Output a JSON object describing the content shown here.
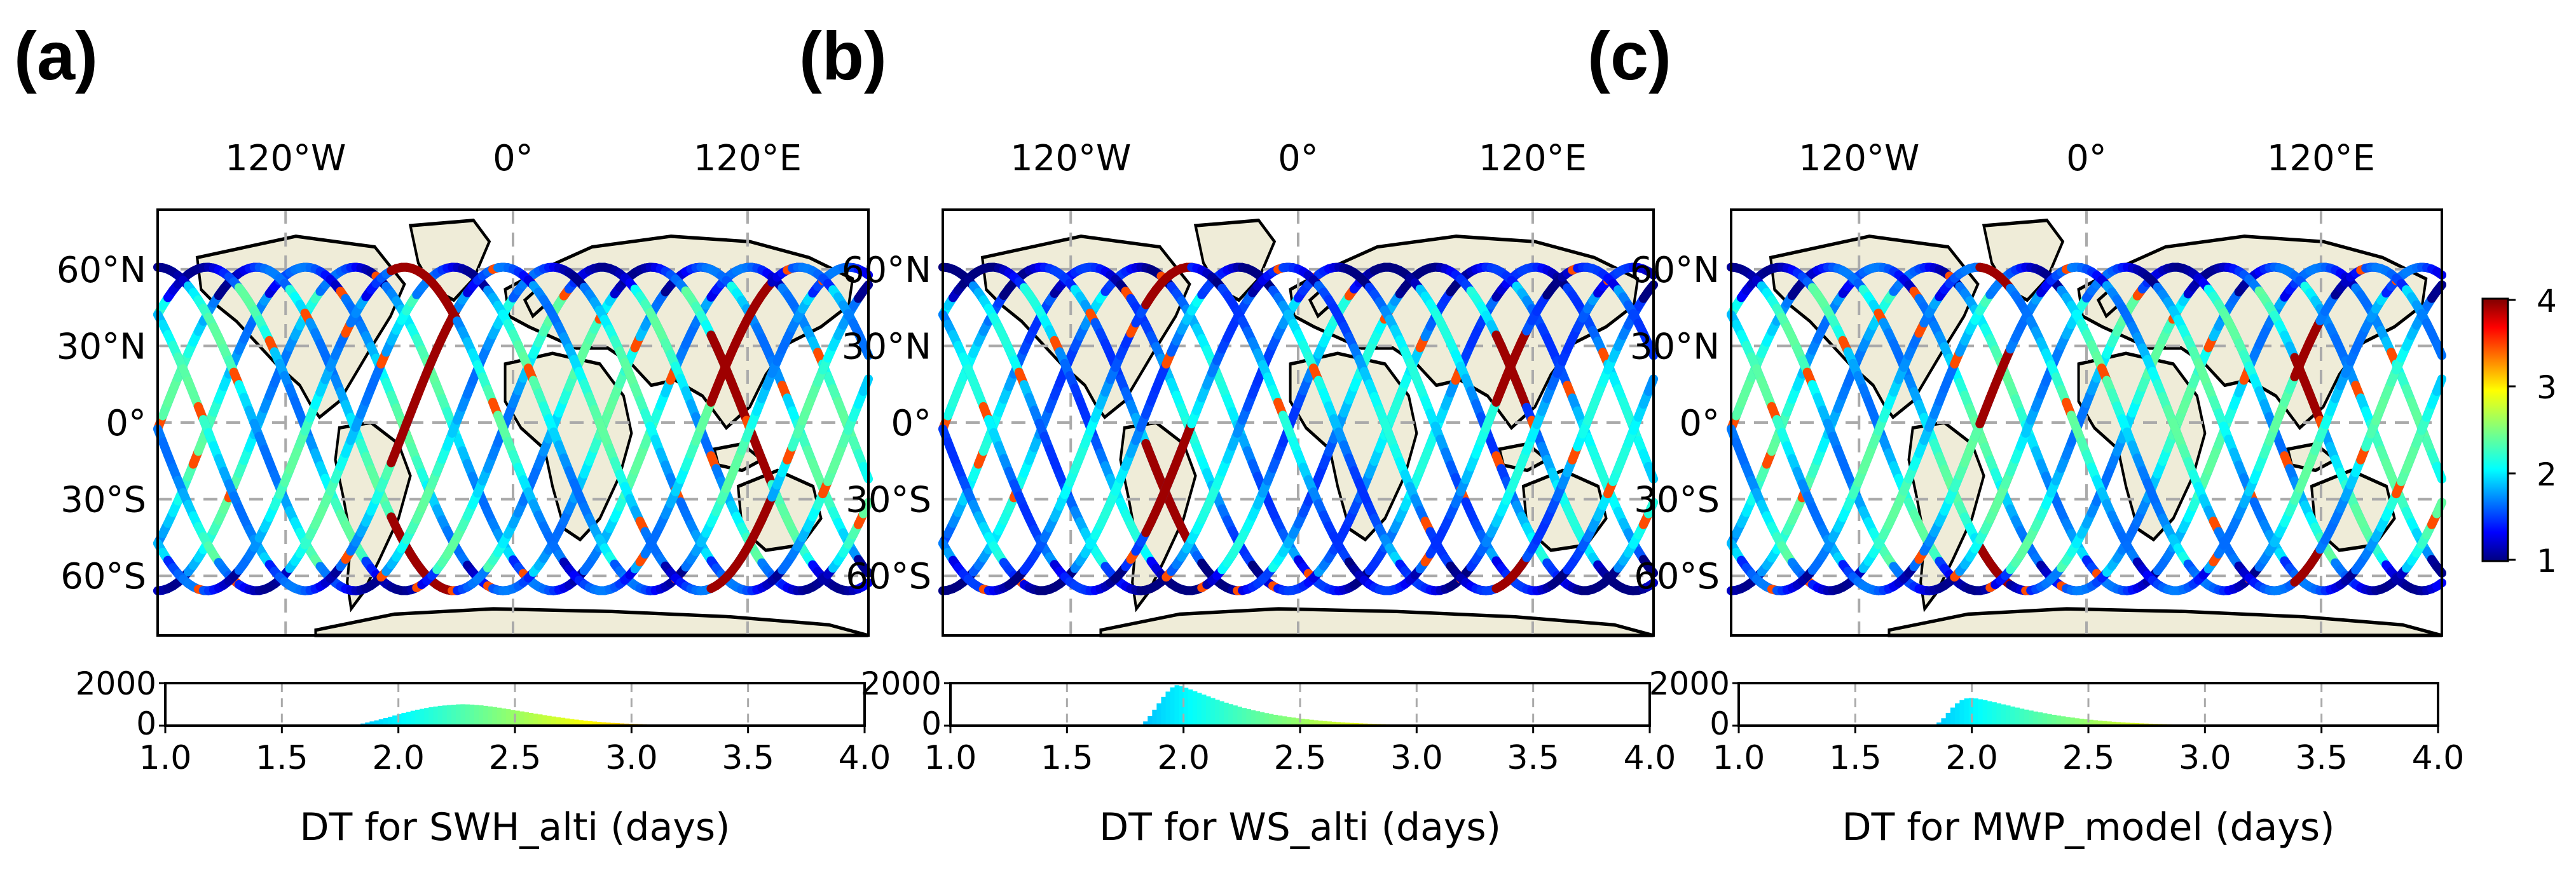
{
  "panels": [
    {
      "label": "(a)",
      "xlabel": "DT for SWH_alti (days)",
      "hist": {
        "values": [
          0,
          0,
          0,
          0,
          0,
          0,
          0,
          0,
          0,
          0,
          0,
          0,
          0,
          0,
          0,
          0,
          0,
          0,
          0,
          0,
          0,
          0,
          0,
          0,
          0,
          0,
          0,
          0,
          0,
          0,
          0,
          0,
          0,
          0,
          0,
          0,
          0,
          0,
          0,
          0,
          10,
          30,
          60,
          100,
          150,
          200,
          250,
          300,
          360,
          420,
          480,
          540,
          600,
          650,
          700,
          750,
          790,
          830,
          870,
          900,
          930,
          950,
          970,
          985,
          1000,
          1005,
          1000,
          990,
          975,
          955,
          930,
          905,
          875,
          845,
          810,
          775,
          740,
          705,
          670,
          635,
          600,
          565,
          530,
          495,
          460,
          430,
          400,
          370,
          340,
          310,
          285,
          260,
          235,
          215,
          195,
          175,
          160,
          145,
          130,
          118,
          106,
          96,
          87,
          79,
          72,
          65,
          59,
          54,
          49,
          45,
          41,
          37,
          34,
          31,
          28,
          25,
          23,
          21,
          19,
          17,
          15,
          14,
          13,
          12,
          11,
          10,
          9,
          8,
          7,
          6,
          6,
          5,
          5,
          4,
          4,
          4,
          3,
          3,
          3,
          2,
          2,
          2,
          2,
          2,
          1,
          1,
          1,
          1,
          1,
          1,
          1,
          1,
          1,
          1
        ]
      }
    },
    {
      "label": "(b)",
      "xlabel": "DT for WS_alti (days)",
      "hist": {
        "values": [
          0,
          0,
          0,
          0,
          0,
          0,
          0,
          0,
          0,
          0,
          0,
          0,
          0,
          0,
          0,
          0,
          0,
          0,
          0,
          0,
          0,
          0,
          0,
          0,
          0,
          0,
          0,
          0,
          0,
          0,
          0,
          0,
          0,
          0,
          0,
          0,
          0,
          0,
          0,
          0,
          0,
          0,
          50,
          200,
          450,
          750,
          1050,
          1350,
          1600,
          1800,
          1900,
          1850,
          1780,
          1700,
          1620,
          1540,
          1460,
          1380,
          1300,
          1220,
          1150,
          1080,
          1010,
          950,
          890,
          830,
          780,
          730,
          680,
          635,
          590,
          550,
          510,
          475,
          440,
          410,
          380,
          350,
          325,
          300,
          278,
          256,
          236,
          218,
          200,
          184,
          169,
          155,
          142,
          130,
          119,
          109,
          100,
          92,
          84,
          77,
          70,
          64,
          59,
          54,
          49,
          45,
          41,
          37,
          34,
          31,
          28,
          25,
          23,
          21,
          19,
          17,
          15,
          14,
          13,
          12,
          11,
          10,
          9,
          8,
          7,
          6,
          6,
          5,
          5,
          4,
          4,
          4,
          3,
          3,
          3,
          2,
          2,
          2,
          2,
          2,
          1,
          1,
          1,
          1,
          1,
          1,
          1,
          1,
          1,
          1,
          1,
          1,
          1,
          1,
          1,
          1,
          1,
          1,
          1,
          1
        ]
      }
    },
    {
      "label": "(c)",
      "xlabel": "DT for MWP_model (days)",
      "hist": {
        "values": [
          0,
          0,
          0,
          0,
          0,
          0,
          0,
          0,
          0,
          0,
          0,
          0,
          0,
          0,
          0,
          0,
          0,
          0,
          0,
          0,
          0,
          0,
          0,
          0,
          0,
          0,
          0,
          0,
          0,
          0,
          0,
          0,
          0,
          0,
          0,
          0,
          0,
          0,
          0,
          0,
          0,
          0,
          40,
          150,
          350,
          600,
          850,
          1050,
          1200,
          1280,
          1300,
          1280,
          1240,
          1200,
          1150,
          1100,
          1050,
          1000,
          950,
          900,
          850,
          800,
          755,
          710,
          665,
          625,
          585,
          545,
          510,
          475,
          440,
          410,
          380,
          350,
          325,
          300,
          278,
          256,
          236,
          218,
          200,
          184,
          169,
          155,
          142,
          130,
          119,
          109,
          100,
          92,
          84,
          77,
          70,
          64,
          59,
          54,
          49,
          45,
          41,
          37,
          34,
          31,
          28,
          25,
          23,
          21,
          19,
          17,
          15,
          14,
          13,
          12,
          11,
          10,
          9,
          8,
          7,
          6,
          6,
          5,
          5,
          4,
          4,
          4,
          3,
          3,
          3,
          2,
          2,
          2,
          2,
          2,
          1,
          1,
          1,
          1,
          1,
          1,
          1,
          1,
          1,
          1,
          1,
          1,
          1,
          1,
          1,
          1,
          1,
          1,
          1,
          1
        ]
      }
    }
  ],
  "map_axes": {
    "x_ticks": [
      "120°W",
      "0°",
      "120°E"
    ],
    "y_ticks": [
      "60°N",
      "30°N",
      "0°",
      "30°S",
      "60°S"
    ]
  },
  "hist_axes": {
    "y_ticks": [
      "2000",
      "0"
    ],
    "x_ticks": [
      "1.0",
      "1.5",
      "2.0",
      "2.5",
      "3.0",
      "3.5",
      "4.0"
    ],
    "xlim": [
      1.0,
      4.0
    ],
    "ylim": [
      0,
      2000
    ]
  },
  "colorbar": {
    "ticks": [
      "4",
      "3",
      "2",
      "1"
    ],
    "vmin": 1,
    "vmax": 4,
    "colormap": "jet"
  },
  "chart_data": [
    {
      "type": "bar",
      "title": "(a)",
      "xlabel": "DT for SWH_alti (days)",
      "ylabel": "",
      "xlim": [
        1.0,
        4.0
      ],
      "ylim": [
        0,
        2000
      ]
    },
    {
      "type": "bar",
      "title": "(b)",
      "xlabel": "DT for WS_alti (days)",
      "ylabel": "",
      "xlim": [
        1.0,
        4.0
      ],
      "ylim": [
        0,
        2000
      ]
    },
    {
      "type": "bar",
      "title": "(c)",
      "xlabel": "DT for MWP_model (days)",
      "ylabel": "",
      "xlim": [
        1.0,
        4.0
      ],
      "ylim": [
        0,
        2000
      ]
    }
  ],
  "colors": {
    "land": "#efecd8",
    "ocean": "#ffffff",
    "grid": "#aaaaaa",
    "coast": "#000000"
  }
}
